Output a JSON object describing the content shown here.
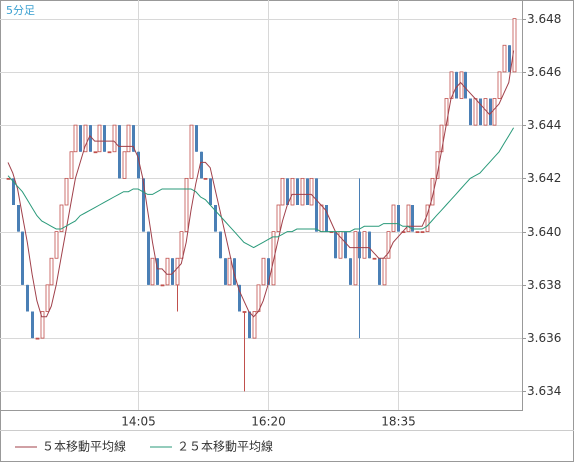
{
  "chart_data": {
    "type": "candlestick",
    "title": "5分足",
    "categories": [
      null,
      null,
      null,
      null,
      null,
      null,
      null,
      null,
      null,
      null,
      null,
      null,
      null,
      null,
      null,
      null,
      null,
      null,
      null,
      null,
      null,
      null,
      null,
      null,
      null,
      null,
      null,
      "14:05",
      null,
      null,
      null,
      null,
      null,
      null,
      null,
      null,
      null,
      null,
      null,
      null,
      null,
      null,
      null,
      null,
      null,
      null,
      null,
      null,
      null,
      null,
      null,
      null,
      null,
      null,
      "16:20",
      null,
      null,
      null,
      null,
      null,
      null,
      null,
      null,
      null,
      null,
      null,
      null,
      null,
      null,
      null,
      null,
      null,
      null,
      null,
      null,
      null,
      null,
      null,
      null,
      null,
      null,
      "18:35",
      null,
      null,
      null,
      null,
      null,
      null,
      null,
      null,
      null,
      null,
      null,
      null,
      null,
      null,
      null,
      null,
      null,
      null,
      null,
      null,
      null,
      null,
      null,
      null
    ],
    "open": [
      3.642,
      3.642,
      3.641,
      3.64,
      3.638,
      3.637,
      3.636,
      3.636,
      3.637,
      3.638,
      3.639,
      3.64,
      3.641,
      3.642,
      3.643,
      3.644,
      3.643,
      3.644,
      3.643,
      3.643,
      3.644,
      3.643,
      3.643,
      3.644,
      3.642,
      3.643,
      3.644,
      3.643,
      3.642,
      3.64,
      3.638,
      3.639,
      3.638,
      3.638,
      3.639,
      3.638,
      3.639,
      3.64,
      3.642,
      3.644,
      3.643,
      3.642,
      3.642,
      3.641,
      3.64,
      3.639,
      3.638,
      3.639,
      3.638,
      3.637,
      3.637,
      3.636,
      3.637,
      3.638,
      3.639,
      3.638,
      3.64,
      3.641,
      3.642,
      3.641,
      3.642,
      3.641,
      3.642,
      3.641,
      3.642,
      3.64,
      3.641,
      3.64,
      3.64,
      3.639,
      3.64,
      3.639,
      3.638,
      3.64,
      3.639,
      3.64,
      3.639,
      3.639,
      3.638,
      3.639,
      3.64,
      3.641,
      3.64,
      3.64,
      3.641,
      3.64,
      3.64,
      3.64,
      3.641,
      3.642,
      3.643,
      3.644,
      3.645,
      3.646,
      3.645,
      3.646,
      3.645,
      3.644,
      3.645,
      3.644,
      3.645,
      3.644,
      3.645,
      3.646,
      3.647,
      3.646
    ],
    "high": [
      3.642,
      3.642,
      3.641,
      3.64,
      3.638,
      3.637,
      3.636,
      3.637,
      3.638,
      3.639,
      3.64,
      3.641,
      3.642,
      3.643,
      3.644,
      3.644,
      3.644,
      3.644,
      3.643,
      3.644,
      3.644,
      3.643,
      3.644,
      3.644,
      3.643,
      3.644,
      3.644,
      3.643,
      3.642,
      3.64,
      3.639,
      3.639,
      3.638,
      3.639,
      3.639,
      3.639,
      3.64,
      3.642,
      3.644,
      3.644,
      3.643,
      3.642,
      3.642,
      3.641,
      3.64,
      3.639,
      3.639,
      3.639,
      3.638,
      3.637,
      3.637,
      3.637,
      3.638,
      3.639,
      3.639,
      3.64,
      3.641,
      3.642,
      3.642,
      3.642,
      3.642,
      3.642,
      3.642,
      3.642,
      3.642,
      3.641,
      3.641,
      3.64,
      3.64,
      3.64,
      3.64,
      3.639,
      3.64,
      3.642,
      3.64,
      3.64,
      3.639,
      3.639,
      3.639,
      3.64,
      3.641,
      3.641,
      3.64,
      3.641,
      3.641,
      3.64,
      3.64,
      3.641,
      3.642,
      3.643,
      3.644,
      3.645,
      3.646,
      3.646,
      3.646,
      3.646,
      3.645,
      3.645,
      3.645,
      3.645,
      3.645,
      3.645,
      3.646,
      3.647,
      3.647,
      3.648
    ],
    "low": [
      3.642,
      3.641,
      3.64,
      3.638,
      3.637,
      3.636,
      3.636,
      3.636,
      3.637,
      3.638,
      3.639,
      3.64,
      3.641,
      3.642,
      3.643,
      3.643,
      3.643,
      3.643,
      3.643,
      3.643,
      3.643,
      3.643,
      3.643,
      3.642,
      3.642,
      3.643,
      3.643,
      3.642,
      3.64,
      3.638,
      3.638,
      3.638,
      3.638,
      3.638,
      3.638,
      3.637,
      3.639,
      3.64,
      3.642,
      3.643,
      3.642,
      3.642,
      3.641,
      3.64,
      3.639,
      3.638,
      3.638,
      3.638,
      3.637,
      3.634,
      3.636,
      3.636,
      3.637,
      3.638,
      3.638,
      3.638,
      3.64,
      3.641,
      3.641,
      3.641,
      3.641,
      3.641,
      3.641,
      3.641,
      3.64,
      3.64,
      3.64,
      3.64,
      3.639,
      3.639,
      3.639,
      3.638,
      3.638,
      3.636,
      3.639,
      3.639,
      3.639,
      3.638,
      3.638,
      3.639,
      3.64,
      3.64,
      3.64,
      3.64,
      3.64,
      3.64,
      3.64,
      3.64,
      3.641,
      3.642,
      3.643,
      3.644,
      3.645,
      3.645,
      3.645,
      3.645,
      3.644,
      3.644,
      3.644,
      3.644,
      3.644,
      3.644,
      3.645,
      3.646,
      3.646,
      3.646
    ],
    "close": [
      3.642,
      3.641,
      3.64,
      3.638,
      3.637,
      3.636,
      3.636,
      3.637,
      3.638,
      3.639,
      3.64,
      3.641,
      3.642,
      3.643,
      3.644,
      3.643,
      3.644,
      3.643,
      3.643,
      3.644,
      3.643,
      3.643,
      3.644,
      3.642,
      3.643,
      3.644,
      3.643,
      3.642,
      3.64,
      3.638,
      3.639,
      3.638,
      3.638,
      3.639,
      3.638,
      3.639,
      3.64,
      3.642,
      3.644,
      3.643,
      3.642,
      3.642,
      3.641,
      3.64,
      3.639,
      3.638,
      3.639,
      3.638,
      3.637,
      3.637,
      3.636,
      3.637,
      3.638,
      3.639,
      3.638,
      3.64,
      3.641,
      3.642,
      3.641,
      3.642,
      3.641,
      3.642,
      3.641,
      3.642,
      3.64,
      3.641,
      3.64,
      3.64,
      3.639,
      3.64,
      3.639,
      3.638,
      3.64,
      3.639,
      3.64,
      3.639,
      3.639,
      3.638,
      3.639,
      3.64,
      3.641,
      3.64,
      3.64,
      3.641,
      3.64,
      3.64,
      3.64,
      3.641,
      3.642,
      3.643,
      3.644,
      3.645,
      3.646,
      3.645,
      3.646,
      3.645,
      3.644,
      3.645,
      3.644,
      3.645,
      3.644,
      3.645,
      3.646,
      3.647,
      3.646,
      3.648
    ],
    "up_color": "#c0504d",
    "down_color": "#4a7fb5",
    "series": [
      {
        "name": "５本移動平均線",
        "color": "#a0404a",
        "values": [
          3.6426,
          3.6422,
          3.6416,
          3.6406,
          3.6396,
          3.6384,
          3.6374,
          3.6368,
          3.6368,
          3.6372,
          3.638,
          3.639,
          3.64,
          3.641,
          3.642,
          3.6426,
          3.6432,
          3.6436,
          3.6434,
          3.6434,
          3.6434,
          3.6434,
          3.6434,
          3.6432,
          3.6432,
          3.6432,
          3.6432,
          3.6428,
          3.642,
          3.6408,
          3.6396,
          3.6386,
          3.6386,
          3.6384,
          3.6384,
          3.6386,
          3.6388,
          3.6396,
          3.6408,
          3.6418,
          3.6426,
          3.6426,
          3.6424,
          3.6416,
          3.6408,
          3.64,
          3.6392,
          3.6384,
          3.6378,
          3.6374,
          3.637,
          3.6368,
          3.637,
          3.6374,
          3.638,
          3.6388,
          3.6396,
          3.6404,
          3.641,
          3.6414,
          3.6414,
          3.6414,
          3.6414,
          3.6414,
          3.6412,
          3.641,
          3.6408,
          3.6404,
          3.64,
          3.6398,
          3.6396,
          3.6394,
          3.6394,
          3.6394,
          3.6394,
          3.6394,
          3.6392,
          3.639,
          3.639,
          3.6392,
          3.6396,
          3.6398,
          3.64,
          3.6402,
          3.6402,
          3.6402,
          3.6402,
          3.6406,
          3.6412,
          3.642,
          3.643,
          3.644,
          3.645,
          3.6454,
          3.6456,
          3.6454,
          3.6452,
          3.645,
          3.6448,
          3.6446,
          3.6444,
          3.6446,
          3.6448,
          3.6452,
          3.6456,
          3.6468
        ]
      },
      {
        "name": "２５本移動平均線",
        "color": "#2a9a7a",
        "values": [
          3.6421,
          3.6419,
          3.6417,
          3.6415,
          3.6412,
          3.6409,
          3.6406,
          3.6404,
          3.6403,
          3.6402,
          3.6401,
          3.6401,
          3.6402,
          3.6403,
          3.6404,
          3.6406,
          3.6407,
          3.6408,
          3.6409,
          3.641,
          3.6411,
          3.6412,
          3.6413,
          3.6414,
          3.6415,
          3.6415,
          3.6416,
          3.6416,
          3.6415,
          3.6414,
          3.6414,
          3.6415,
          3.6416,
          3.6416,
          3.6416,
          3.6416,
          3.6416,
          3.6416,
          3.6416,
          3.6415,
          3.6413,
          3.6412,
          3.641,
          3.6408,
          3.6406,
          3.6404,
          3.6402,
          3.64,
          3.6398,
          3.6396,
          3.6395,
          3.6394,
          3.6395,
          3.6396,
          3.6397,
          3.6398,
          3.6398,
          3.6399,
          3.64,
          3.64,
          3.6401,
          3.6401,
          3.6401,
          3.6401,
          3.6401,
          3.64,
          3.64,
          3.64,
          3.64,
          3.64,
          3.64,
          3.64,
          3.6401,
          3.6401,
          3.6402,
          3.6402,
          3.6402,
          3.6402,
          3.6403,
          3.6403,
          3.6403,
          3.6403,
          3.6402,
          3.6402,
          3.6401,
          3.6401,
          3.6401,
          3.6402,
          3.6404,
          3.6406,
          3.6408,
          3.641,
          3.6412,
          3.6414,
          3.6416,
          3.6418,
          3.642,
          3.6421,
          3.6422,
          3.6424,
          3.6426,
          3.6428,
          3.643,
          3.6433,
          3.6436,
          3.6439
        ]
      }
    ],
    "ylim": [
      3.6333,
      3.6487
    ],
    "yticks": [
      3.634,
      3.636,
      3.638,
      {
        "value": 3.64,
        "label": "3.640"
      },
      3.642,
      3.644,
      3.646,
      3.648
    ],
    "grid": true
  }
}
